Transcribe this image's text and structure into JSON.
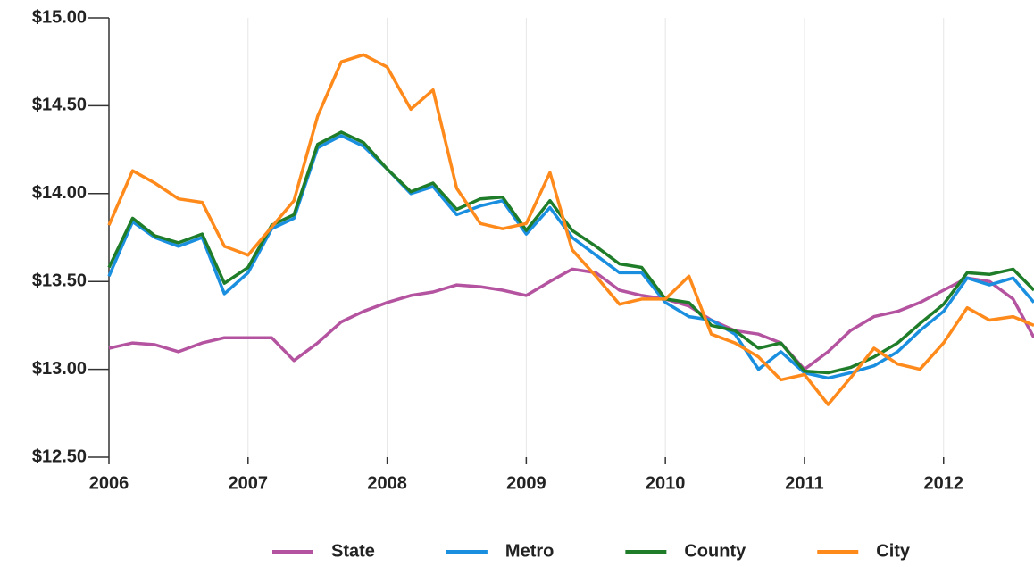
{
  "chart_data": {
    "type": "line",
    "x": [
      2006,
      2006.17,
      2006.33,
      2006.5,
      2006.67,
      2006.83,
      2007,
      2007.17,
      2007.33,
      2007.5,
      2007.67,
      2007.83,
      2008,
      2008.17,
      2008.33,
      2008.5,
      2008.67,
      2008.83,
      2009,
      2009.17,
      2009.33,
      2009.5,
      2009.67,
      2009.83,
      2010,
      2010.17,
      2010.33,
      2010.5,
      2010.67,
      2010.83,
      2011,
      2011.17,
      2011.33,
      2011.5,
      2011.67,
      2011.83,
      2012,
      2012.17,
      2012.33,
      2012.5,
      2012.65
    ],
    "series": [
      {
        "name": "State",
        "color": "#b4539f",
        "values": [
          13.12,
          13.15,
          13.14,
          13.1,
          13.15,
          13.18,
          13.18,
          13.18,
          13.05,
          13.15,
          13.27,
          13.33,
          13.38,
          13.42,
          13.44,
          13.48,
          13.47,
          13.45,
          13.42,
          13.5,
          13.57,
          13.55,
          13.45,
          13.42,
          13.4,
          13.36,
          13.28,
          13.22,
          13.2,
          13.15,
          13.0,
          13.1,
          13.22,
          13.3,
          13.33,
          13.38,
          13.45,
          13.52,
          13.5,
          13.4,
          13.18
        ]
      },
      {
        "name": "Metro",
        "color": "#1a8fe0",
        "values": [
          13.53,
          13.84,
          13.75,
          13.7,
          13.75,
          13.43,
          13.55,
          13.8,
          13.86,
          14.26,
          14.33,
          14.27,
          14.14,
          14.0,
          14.04,
          13.88,
          13.93,
          13.96,
          13.77,
          13.92,
          13.75,
          13.65,
          13.55,
          13.55,
          13.38,
          13.3,
          13.28,
          13.2,
          13.0,
          13.1,
          12.98,
          12.95,
          12.98,
          13.02,
          13.1,
          13.22,
          13.33,
          13.52,
          13.48,
          13.52,
          13.38
        ]
      },
      {
        "name": "County",
        "color": "#1f7d2a",
        "values": [
          13.58,
          13.86,
          13.76,
          13.72,
          13.77,
          13.49,
          13.58,
          13.82,
          13.88,
          14.28,
          14.35,
          14.29,
          14.14,
          14.01,
          14.06,
          13.91,
          13.97,
          13.98,
          13.79,
          13.96,
          13.79,
          13.7,
          13.6,
          13.58,
          13.4,
          13.38,
          13.25,
          13.22,
          13.12,
          13.15,
          12.99,
          12.98,
          13.01,
          13.07,
          13.15,
          13.26,
          13.37,
          13.55,
          13.54,
          13.57,
          13.45
        ]
      },
      {
        "name": "City",
        "color": "#ff8a1c",
        "values": [
          13.82,
          14.13,
          14.06,
          13.97,
          13.95,
          13.7,
          13.65,
          13.81,
          13.96,
          14.44,
          14.75,
          14.79,
          14.72,
          14.48,
          14.59,
          14.03,
          13.83,
          13.8,
          13.83,
          14.12,
          13.68,
          13.53,
          13.37,
          13.4,
          13.4,
          13.53,
          13.2,
          13.15,
          13.07,
          12.94,
          12.97,
          12.8,
          12.95,
          13.12,
          13.03,
          13.0,
          13.15,
          13.35,
          13.28,
          13.3,
          13.25
        ]
      }
    ],
    "xlim": [
      2006,
      2012.65
    ],
    "xticks": [
      2006,
      2007,
      2008,
      2009,
      2010,
      2011,
      2012
    ],
    "ylim": [
      12.5,
      15
    ],
    "yticks": [
      {
        "value": 12.5,
        "label": "$12.50"
      },
      {
        "value": 13,
        "label": "$13.00"
      },
      {
        "value": 13.5,
        "label": "$13.50"
      },
      {
        "value": 14,
        "label": "$14.00"
      },
      {
        "value": 14.5,
        "label": "$14.50"
      },
      {
        "value": 15,
        "label": "$15.00"
      }
    ],
    "grid": true
  }
}
